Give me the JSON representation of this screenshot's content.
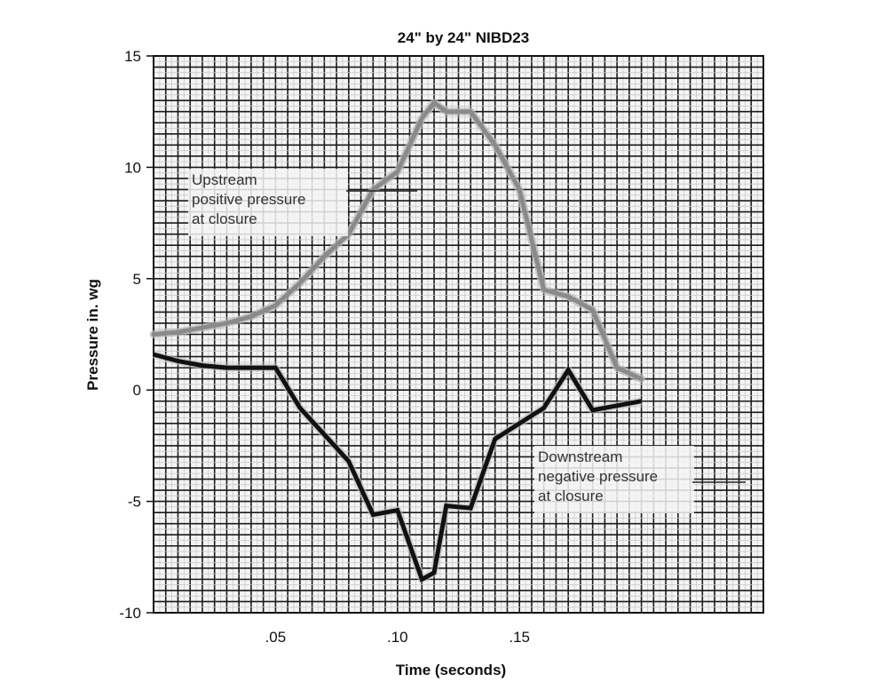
{
  "chart_data": {
    "type": "line",
    "title": "24\" by 24\" NIBD23",
    "xlabel": "Time (seconds)",
    "ylabel": "Pressure in. wg",
    "xlim": [
      0,
      0.25
    ],
    "ylim": [
      -10,
      15
    ],
    "x_ticks": [
      {
        "value": 0.05,
        "label": ".05"
      },
      {
        "value": 0.1,
        "label": ".10"
      },
      {
        "value": 0.15,
        "label": ".15"
      }
    ],
    "y_ticks": [
      {
        "value": 15,
        "label": "15"
      },
      {
        "value": 10,
        "label": "10"
      },
      {
        "value": 5,
        "label": "5"
      },
      {
        "value": 0,
        "label": "0"
      },
      {
        "value": -5,
        "label": "-5"
      },
      {
        "value": -10,
        "label": "-10"
      }
    ],
    "grid": true,
    "series": [
      {
        "label_lines": [
          "Upstream",
          "positive pressure",
          "at closure"
        ],
        "color": "#8a8a8a",
        "x": [
          0,
          0.01,
          0.02,
          0.03,
          0.04,
          0.05,
          0.06,
          0.07,
          0.08,
          0.09,
          0.1,
          0.11,
          0.115,
          0.12,
          0.13,
          0.14,
          0.15,
          0.16,
          0.17,
          0.18,
          0.19,
          0.2
        ],
        "y": [
          2.5,
          2.6,
          2.8,
          3.0,
          3.3,
          3.8,
          4.8,
          6.0,
          7.0,
          9.0,
          9.8,
          12.2,
          12.9,
          12.5,
          12.5,
          11.0,
          9.0,
          4.5,
          4.2,
          3.6,
          1.0,
          0.5
        ]
      },
      {
        "label_lines": [
          "Downstream",
          "negative pressure",
          "at closure"
        ],
        "color": "#111111",
        "x": [
          0,
          0.01,
          0.02,
          0.03,
          0.04,
          0.05,
          0.06,
          0.07,
          0.08,
          0.09,
          0.1,
          0.11,
          0.115,
          0.12,
          0.13,
          0.14,
          0.15,
          0.16,
          0.17,
          0.18,
          0.19,
          0.2
        ],
        "y": [
          1.6,
          1.3,
          1.1,
          1.0,
          1.0,
          1.0,
          -0.8,
          -2.0,
          -3.2,
          -5.6,
          -5.4,
          -8.5,
          -8.2,
          -5.2,
          -5.3,
          -2.2,
          -1.5,
          -0.8,
          0.9,
          -0.9,
          -0.7,
          -0.5
        ]
      }
    ]
  }
}
